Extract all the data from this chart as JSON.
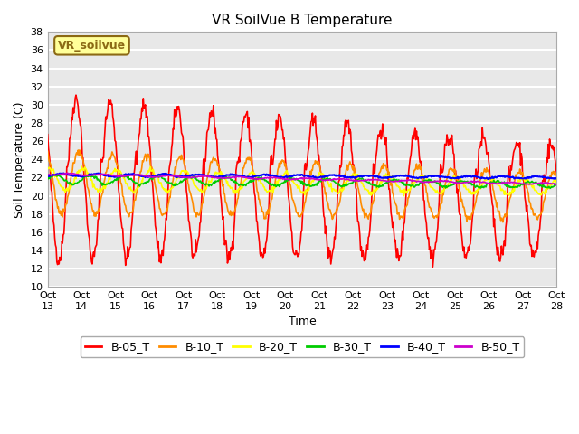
{
  "title": "VR SoilVue B Temperature",
  "xlabel": "Time",
  "ylabel": "Soil Temperature (C)",
  "ylim": [
    10,
    38
  ],
  "yticks": [
    10,
    12,
    14,
    16,
    18,
    20,
    22,
    24,
    26,
    28,
    30,
    32,
    34,
    36,
    38
  ],
  "xtick_labels": [
    "Oct\n13",
    "Oct\n14",
    "Oct\n15",
    "Oct\n16",
    "Oct\n17",
    "Oct\n18",
    "Oct\n19",
    "Oct\n20",
    "Oct\n21",
    "Oct\n22",
    "Oct\n23",
    "Oct\n24",
    "Oct\n25",
    "Oct\n26",
    "Oct\n27",
    "Oct\n28"
  ],
  "watermark": "VR_soilvue",
  "legend": [
    "B-05_T",
    "B-10_T",
    "B-20_T",
    "B-30_T",
    "B-40_T",
    "B-50_T"
  ],
  "colors": [
    "#FF0000",
    "#FF8C00",
    "#FFFF00",
    "#00CC00",
    "#0000FF",
    "#CC00CC"
  ],
  "background_color": "#E8E8E8",
  "grid_color": "#FFFFFF",
  "title_fontsize": 11,
  "n_days": 15,
  "seed": 42
}
